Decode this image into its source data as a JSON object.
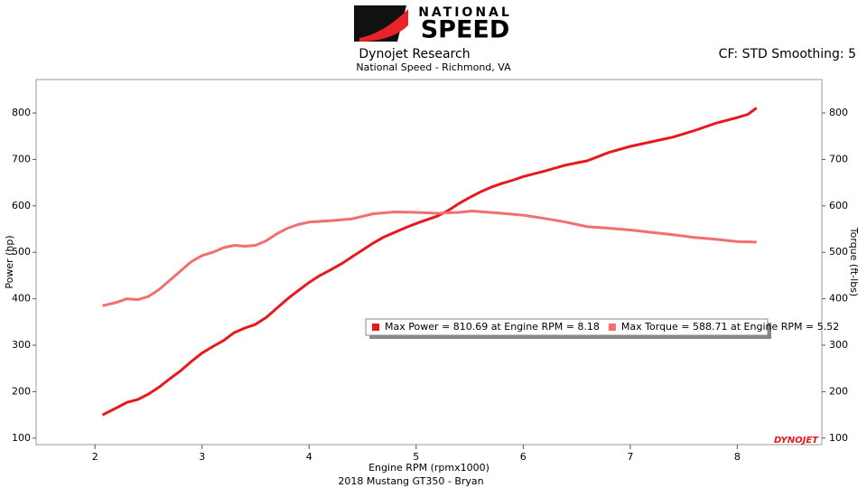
{
  "branding": {
    "logo_top": "NATIONAL",
    "logo_bottom": "SPEED",
    "watermark": "DYNOJET"
  },
  "chart_data": {
    "type": "line",
    "title": "Dynojet Research",
    "subtitle": "National Speed - Richmond, VA",
    "settings_text": "CF: STD Smoothing: 5",
    "x_label": "Engine RPM (rpmx1000)",
    "footer": "2018 Mustang GT350 - Bryan",
    "y_label": "Power (hp)",
    "y2_label": "Torque (ft-lbs)",
    "xlim": [
      1.45,
      8.79
    ],
    "xticks": [
      2,
      3,
      4,
      5,
      6,
      7,
      8
    ],
    "ylim": [
      86,
      872
    ],
    "yticks": [
      100,
      200,
      300,
      400,
      500,
      600,
      700,
      800
    ],
    "y2lim": [
      86,
      872
    ],
    "y2ticks": [
      100,
      200,
      300,
      400,
      500,
      600,
      700,
      800
    ],
    "grid": false,
    "series": [
      {
        "name": "Max Power = 810.69 at Engine RPM = 8.18",
        "color": "#e8191c",
        "x": [
          2.07,
          2.2,
          2.3,
          2.4,
          2.5,
          2.6,
          2.7,
          2.8,
          2.9,
          3.0,
          3.1,
          3.2,
          3.3,
          3.4,
          3.5,
          3.6,
          3.7,
          3.8,
          3.9,
          4.0,
          4.1,
          4.2,
          4.3,
          4.4,
          4.5,
          4.6,
          4.7,
          4.8,
          4.9,
          5.0,
          5.1,
          5.2,
          5.3,
          5.4,
          5.5,
          5.6,
          5.7,
          5.8,
          5.9,
          6.0,
          6.2,
          6.4,
          6.6,
          6.8,
          7.0,
          7.2,
          7.4,
          7.6,
          7.8,
          8.0,
          8.1,
          8.18
        ],
        "values": [
          150,
          165,
          177,
          183,
          195,
          210,
          228,
          245,
          265,
          283,
          297,
          310,
          327,
          337,
          345,
          360,
          380,
          400,
          418,
          435,
          450,
          462,
          475,
          490,
          505,
          520,
          533,
          543,
          553,
          562,
          570,
          578,
          590,
          605,
          618,
          630,
          640,
          648,
          655,
          663,
          675,
          688,
          697,
          715,
          728,
          738,
          748,
          762,
          778,
          790,
          797,
          811
        ]
      },
      {
        "name": "Max Torque = 588.71 at Engine RPM = 5.52",
        "color": "#f07070",
        "axis": "y2",
        "x": [
          2.07,
          2.2,
          2.3,
          2.4,
          2.5,
          2.6,
          2.7,
          2.8,
          2.9,
          3.0,
          3.1,
          3.2,
          3.3,
          3.4,
          3.5,
          3.6,
          3.7,
          3.8,
          3.9,
          4.0,
          4.2,
          4.4,
          4.6,
          4.8,
          5.0,
          5.2,
          5.4,
          5.52,
          5.8,
          6.0,
          6.2,
          6.4,
          6.6,
          6.8,
          7.0,
          7.2,
          7.4,
          7.6,
          7.8,
          8.0,
          8.18
        ],
        "values": [
          385,
          392,
          400,
          398,
          405,
          420,
          440,
          460,
          480,
          493,
          500,
          510,
          515,
          513,
          515,
          525,
          540,
          552,
          560,
          565,
          568,
          572,
          583,
          587,
          586,
          584,
          586,
          589,
          584,
          580,
          573,
          565,
          555,
          552,
          548,
          543,
          538,
          532,
          528,
          523,
          522
        ]
      }
    ]
  }
}
